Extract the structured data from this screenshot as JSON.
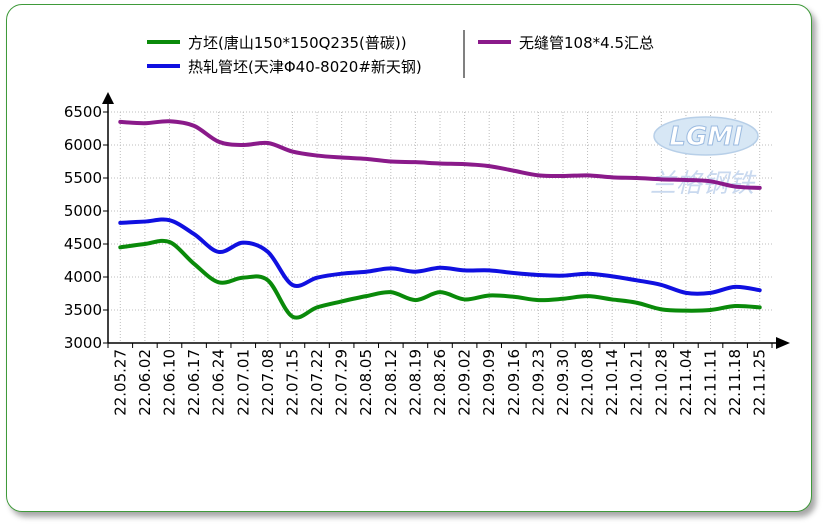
{
  "chart_data": {
    "type": "line",
    "x": [
      "22.05.27",
      "22.06.02",
      "22.06.10",
      "22.06.17",
      "22.06.24",
      "22.07.01",
      "22.07.08",
      "22.07.15",
      "22.07.22",
      "22.07.29",
      "22.08.05",
      "22.08.12",
      "22.08.19",
      "22.08.26",
      "22.09.02",
      "22.09.09",
      "22.09.16",
      "22.09.23",
      "22.09.30",
      "22.10.08",
      "22.10.14",
      "22.10.21",
      "22.10.28",
      "22.11.04",
      "22.11.11",
      "22.11.18",
      "22.11.25"
    ],
    "ylim": [
      3000,
      6500
    ],
    "yticks": [
      3000,
      3500,
      4000,
      4500,
      5000,
      5500,
      6000,
      6500
    ],
    "grid": true,
    "legend_position": "top",
    "series": [
      {
        "name": "方坯(唐山150*150Q235(普碳))",
        "color": "#0a8a0a",
        "values": [
          4450,
          4500,
          4530,
          4200,
          3920,
          3990,
          3950,
          3400,
          3540,
          3630,
          3710,
          3770,
          3650,
          3770,
          3660,
          3720,
          3700,
          3650,
          3670,
          3710,
          3660,
          3610,
          3510,
          3490,
          3500,
          3560,
          3540
        ]
      },
      {
        "name": "热轧管坯(天津Φ40-8020#新天钢)",
        "color": "#1010e0",
        "values": [
          4820,
          4840,
          4860,
          4650,
          4380,
          4520,
          4380,
          3880,
          3990,
          4050,
          4080,
          4130,
          4080,
          4140,
          4100,
          4100,
          4060,
          4030,
          4020,
          4050,
          4010,
          3950,
          3880,
          3760,
          3760,
          3850,
          3800
        ]
      },
      {
        "name": "无缝管108*4.5汇总",
        "color": "#8a1a8a",
        "values": [
          6350,
          6330,
          6360,
          6290,
          6050,
          6000,
          6030,
          5900,
          5840,
          5810,
          5790,
          5750,
          5740,
          5720,
          5710,
          5680,
          5610,
          5540,
          5530,
          5540,
          5510,
          5500,
          5480,
          5470,
          5450,
          5370,
          5350
        ]
      }
    ]
  },
  "watermark": {
    "logo_text": "LGMI",
    "subtitle_text": "兰格钢铁"
  }
}
